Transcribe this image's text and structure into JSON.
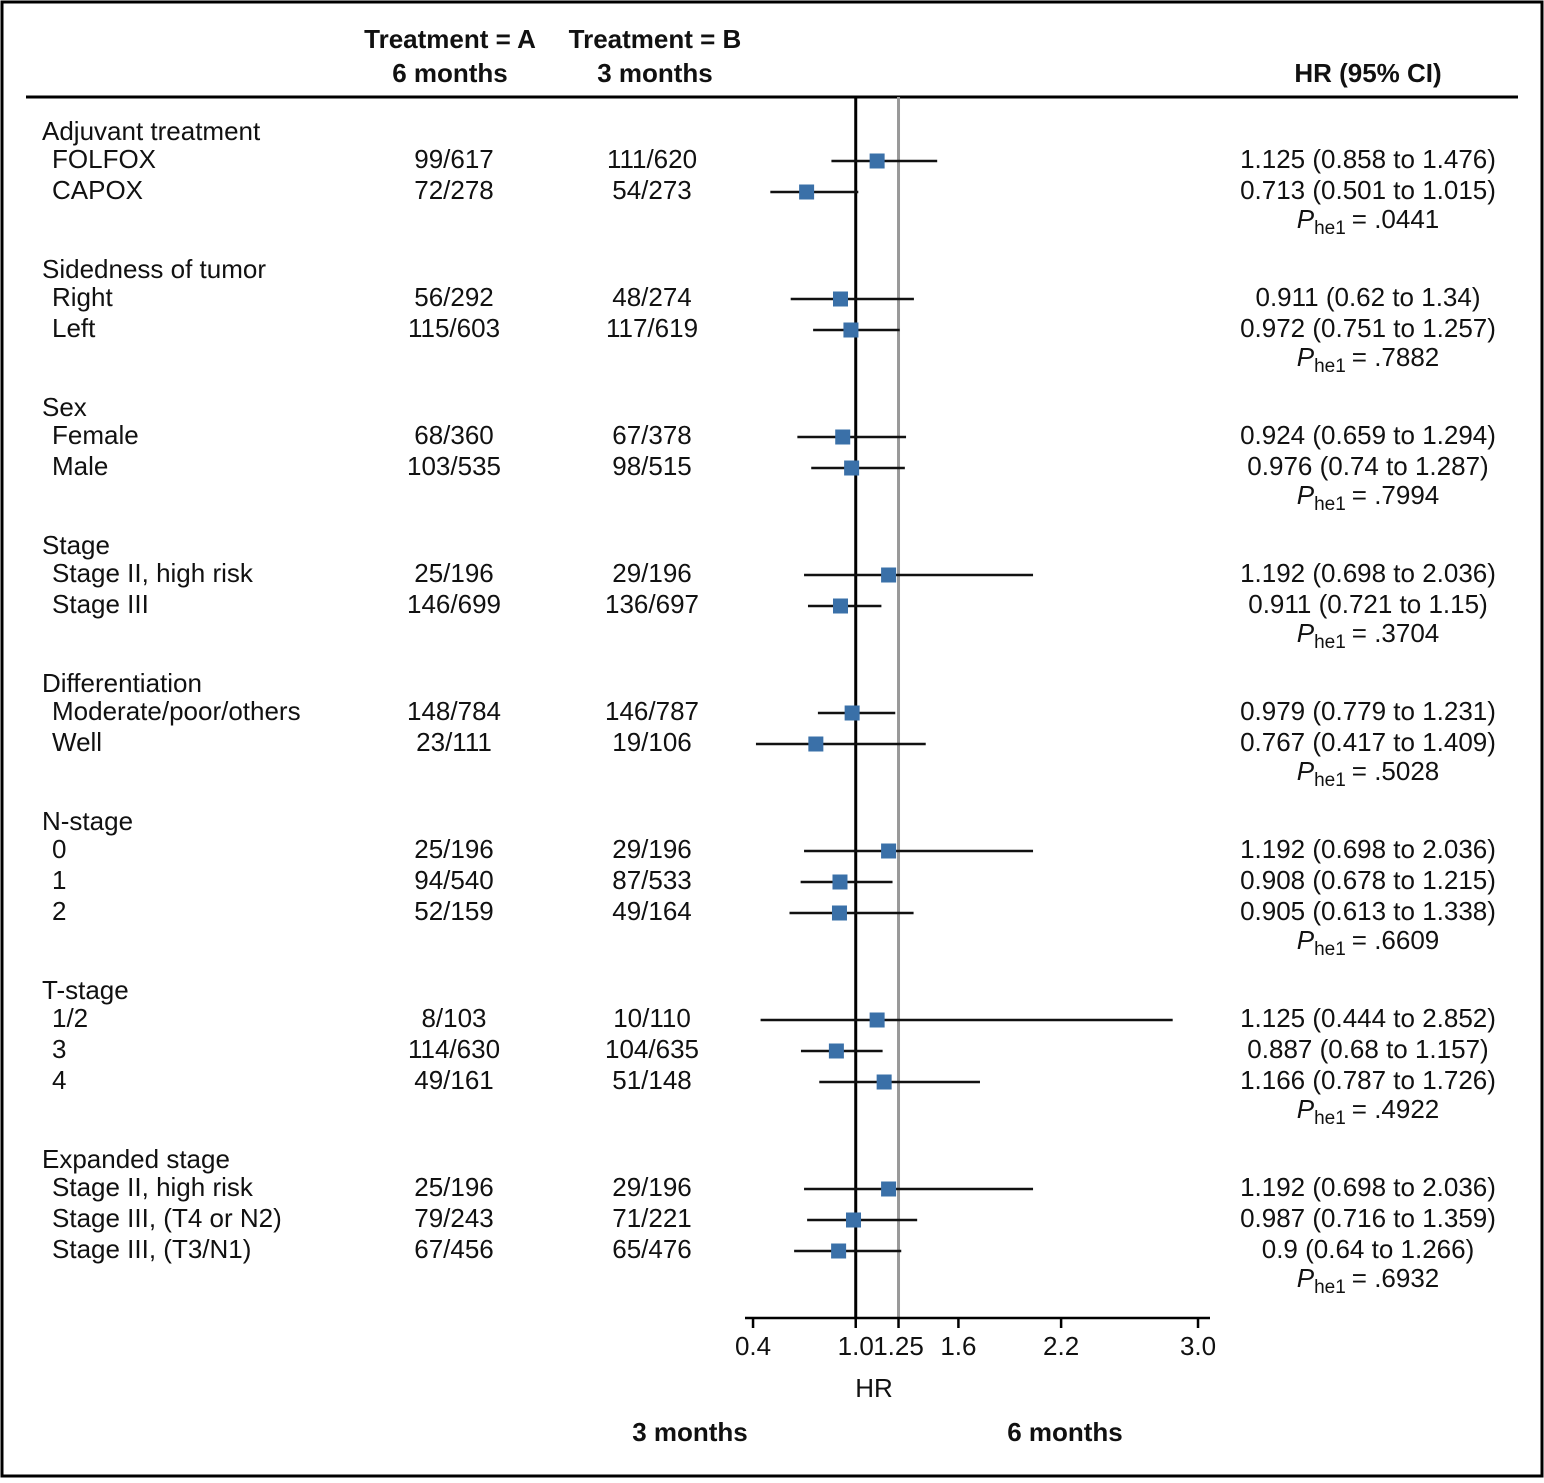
{
  "chart_data": {
    "type": "forest",
    "headers": {
      "group_a": "Treatment = A",
      "group_a_sub": "6 months",
      "group_b": "Treatment = B",
      "group_b_sub": "3 months",
      "ci": "HR (95% CI)"
    },
    "p_symbol": "P",
    "p_subscript": "he1",
    "groups": [
      {
        "name": "Adjuvant treatment",
        "p_text": "= .0441",
        "rows": [
          {
            "label": "FOLFOX",
            "a": "99/617",
            "b": "111/620",
            "hr": 1.125,
            "lo": 0.858,
            "hi": 1.476,
            "ci_label": "1.125 (0.858 to 1.476)"
          },
          {
            "label": "CAPOX",
            "a": "72/278",
            "b": "54/273",
            "hr": 0.713,
            "lo": 0.501,
            "hi": 1.015,
            "ci_label": "0.713 (0.501 to 1.015)"
          }
        ]
      },
      {
        "name": "Sidedness of tumor",
        "p_text": "= .7882",
        "rows": [
          {
            "label": "Right",
            "a": "56/292",
            "b": "48/274",
            "hr": 0.911,
            "lo": 0.62,
            "hi": 1.34,
            "ci_label": "0.911 (0.62 to 1.34)"
          },
          {
            "label": "Left",
            "a": "115/603",
            "b": "117/619",
            "hr": 0.972,
            "lo": 0.751,
            "hi": 1.257,
            "ci_label": "0.972 (0.751 to 1.257)"
          }
        ]
      },
      {
        "name": "Sex",
        "p_text": "= .7994",
        "rows": [
          {
            "label": "Female",
            "a": "68/360",
            "b": "67/378",
            "hr": 0.924,
            "lo": 0.659,
            "hi": 1.294,
            "ci_label": "0.924 (0.659 to 1.294)"
          },
          {
            "label": "Male",
            "a": "103/535",
            "b": "98/515",
            "hr": 0.976,
            "lo": 0.74,
            "hi": 1.287,
            "ci_label": "0.976 (0.74 to 1.287)"
          }
        ]
      },
      {
        "name": "Stage",
        "p_text": "= .3704",
        "rows": [
          {
            "label": "Stage II, high risk",
            "a": "25/196",
            "b": "29/196",
            "hr": 1.192,
            "lo": 0.698,
            "hi": 2.036,
            "ci_label": "1.192 (0.698 to 2.036)"
          },
          {
            "label": "Stage III",
            "a": "146/699",
            "b": "136/697",
            "hr": 0.911,
            "lo": 0.721,
            "hi": 1.15,
            "ci_label": "0.911 (0.721 to 1.15)"
          }
        ]
      },
      {
        "name": "Differentiation",
        "p_text": "= .5028",
        "rows": [
          {
            "label": "Moderate/poor/others",
            "a": "148/784",
            "b": "146/787",
            "hr": 0.979,
            "lo": 0.779,
            "hi": 1.231,
            "ci_label": "0.979 (0.779 to 1.231)"
          },
          {
            "label": "Well",
            "a": "23/111",
            "b": "19/106",
            "hr": 0.767,
            "lo": 0.417,
            "hi": 1.409,
            "ci_label": "0.767 (0.417 to 1.409)"
          }
        ]
      },
      {
        "name": "N-stage",
        "p_text": "= .6609",
        "rows": [
          {
            "label": "0",
            "a": "25/196",
            "b": "29/196",
            "hr": 1.192,
            "lo": 0.698,
            "hi": 2.036,
            "ci_label": "1.192 (0.698 to 2.036)"
          },
          {
            "label": "1",
            "a": "94/540",
            "b": "87/533",
            "hr": 0.908,
            "lo": 0.678,
            "hi": 1.215,
            "ci_label": "0.908 (0.678 to 1.215)"
          },
          {
            "label": "2",
            "a": "52/159",
            "b": "49/164",
            "hr": 0.905,
            "lo": 0.613,
            "hi": 1.338,
            "ci_label": "0.905 (0.613 to 1.338)"
          }
        ]
      },
      {
        "name": "T-stage",
        "p_text": "= .4922",
        "rows": [
          {
            "label": "1/2",
            "a": "8/103",
            "b": "10/110",
            "hr": 1.125,
            "lo": 0.444,
            "hi": 2.852,
            "ci_label": "1.125 (0.444 to 2.852)"
          },
          {
            "label": "3",
            "a": "114/630",
            "b": "104/635",
            "hr": 0.887,
            "lo": 0.68,
            "hi": 1.157,
            "ci_label": "0.887 (0.68 to 1.157)"
          },
          {
            "label": "4",
            "a": "49/161",
            "b": "51/148",
            "hr": 1.166,
            "lo": 0.787,
            "hi": 1.726,
            "ci_label": "1.166 (0.787 to 1.726)"
          }
        ]
      },
      {
        "name": "Expanded stage",
        "p_text": "= .6932",
        "rows": [
          {
            "label": "Stage II, high risk",
            "a": "25/196",
            "b": "29/196",
            "hr": 1.192,
            "lo": 0.698,
            "hi": 2.036,
            "ci_label": "1.192 (0.698 to 2.036)"
          },
          {
            "label": "Stage III, (T4 or N2)",
            "a": "79/243",
            "b": "71/221",
            "hr": 0.987,
            "lo": 0.716,
            "hi": 1.359,
            "ci_label": "0.987 (0.716 to 1.359)"
          },
          {
            "label": "Stage III, (T3/N1)",
            "a": "67/456",
            "b": "65/476",
            "hr": 0.9,
            "lo": 0.64,
            "hi": 1.266,
            "ci_label": "0.9 (0.64 to 1.266)"
          }
        ]
      }
    ],
    "marker_color": "#3a70a8",
    "reference_lines": [
      {
        "value": 1,
        "color": "#000000"
      },
      {
        "value": 1.25,
        "color": "#999999"
      }
    ],
    "xlim": [
      0.353,
      3.07
    ],
    "xticks": [
      0.4,
      {
        "value": 1,
        "label": "1.0"
      },
      1.25,
      1.6,
      2.2,
      {
        "value": 3,
        "label": "3.0"
      }
    ],
    "xlabel": "HR",
    "direction_labels": [
      "3 months",
      "6 months"
    ]
  }
}
